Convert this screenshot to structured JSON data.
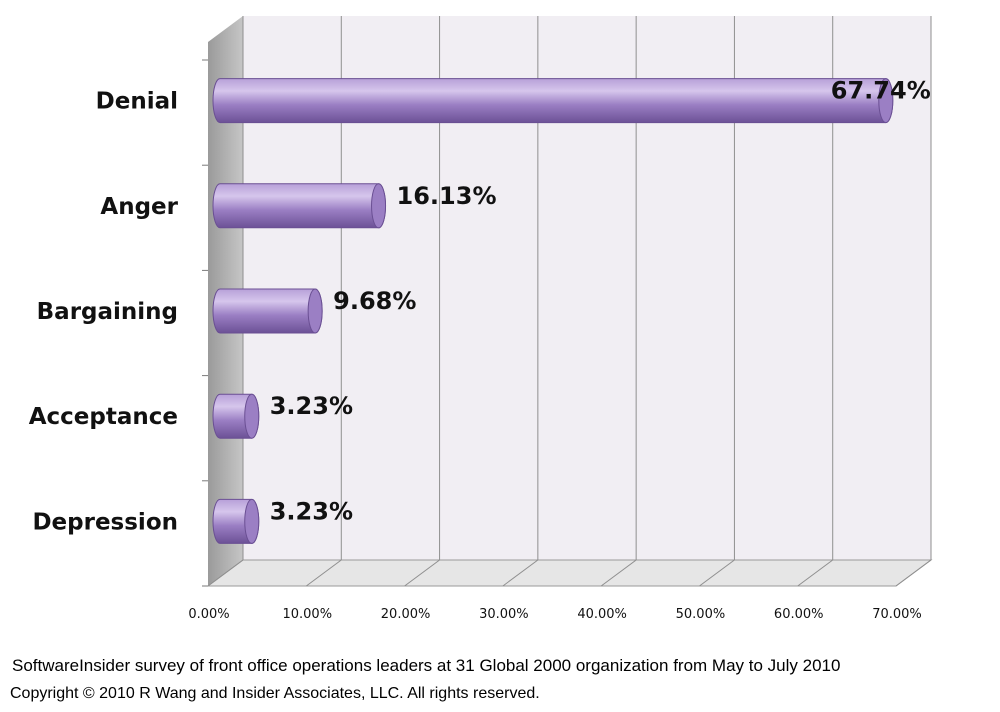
{
  "chart_data": {
    "type": "bar",
    "orientation": "horizontal",
    "style": "3d-cylinder",
    "categories": [
      "Denial",
      "Anger",
      "Bargaining",
      "Acceptance",
      "Depression"
    ],
    "values": [
      67.74,
      16.13,
      9.68,
      3.23,
      3.23
    ],
    "data_labels": [
      "67.74%",
      "16.13%",
      "9.68%",
      "3.23%",
      "3.23%"
    ],
    "x_ticks": [
      "0.00%",
      "10.00%",
      "20.00%",
      "30.00%",
      "40.00%",
      "50.00%",
      "60.00%",
      "70.00%"
    ],
    "xlim": [
      0,
      70
    ],
    "grid": "vertical",
    "legend": "none",
    "title": "",
    "xlabel": "",
    "ylabel": "",
    "colors": {
      "bar": "#9b7fc4",
      "bar_dark": "#6a4f93",
      "bar_light": "#cdb9e6",
      "back_wall": "#f1eef3",
      "side_wall": "#b3b3b3",
      "floor": "#e6e6e6",
      "grid": "#8f8f8f"
    }
  },
  "captions": {
    "survey": "SoftwareInsider survey of front office operations leaders at 31 Global 2000 organization from May to July 2010",
    "copyright": "Copyright © 2010 R Wang and Insider Associates, LLC. All rights reserved."
  }
}
